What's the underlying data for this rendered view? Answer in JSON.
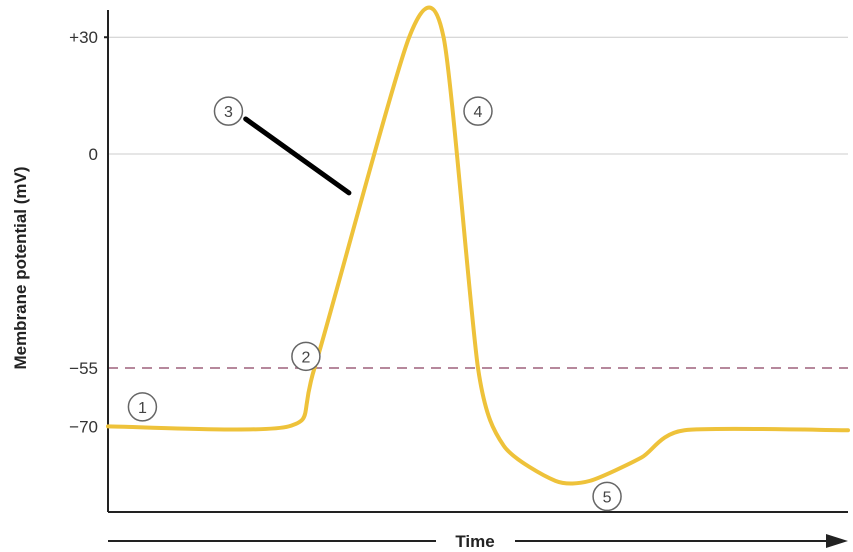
{
  "chart_data": {
    "type": "line",
    "xlabel": "Time",
    "ylabel": "Membrane potential (mV)",
    "y_ticks": [
      {
        "value": 30,
        "label": "+30"
      },
      {
        "value": 0,
        "label": "0"
      },
      {
        "value": -55,
        "label": "−55"
      },
      {
        "value": -70,
        "label": "−70"
      }
    ],
    "ylim": [
      -92,
      37
    ],
    "threshold": -55,
    "grid": true,
    "series": [
      {
        "color": "#eec23a",
        "points": [
          [
            0,
            -70
          ],
          [
            21,
            -70
          ],
          [
            24,
            -55
          ],
          [
            35,
            30
          ],
          [
            39,
            30
          ],
          [
            43,
            -55
          ],
          [
            46,
            -75
          ],
          [
            52,
            -84
          ],
          [
            56,
            -84
          ],
          [
            62,
            -78
          ],
          [
            67,
            -71
          ],
          [
            86,
            -71
          ]
        ]
      }
    ],
    "annotations": [
      {
        "label": "1",
        "x": 4,
        "y": -65
      },
      {
        "label": "2",
        "x": 23,
        "y": -52
      },
      {
        "label": "3",
        "x": 14,
        "y": 11
      },
      {
        "label": "4",
        "x": 43,
        "y": 11
      },
      {
        "label": "5",
        "x": 58,
        "y": -88
      }
    ],
    "pointer_line": {
      "from": [
        16,
        9
      ],
      "to": [
        28,
        -10
      ]
    },
    "colors": {
      "trace": "#eec23a",
      "axis": "#222222",
      "grid": "#cccccc",
      "threshold": "#b6889c",
      "pointer": "#000000"
    }
  }
}
